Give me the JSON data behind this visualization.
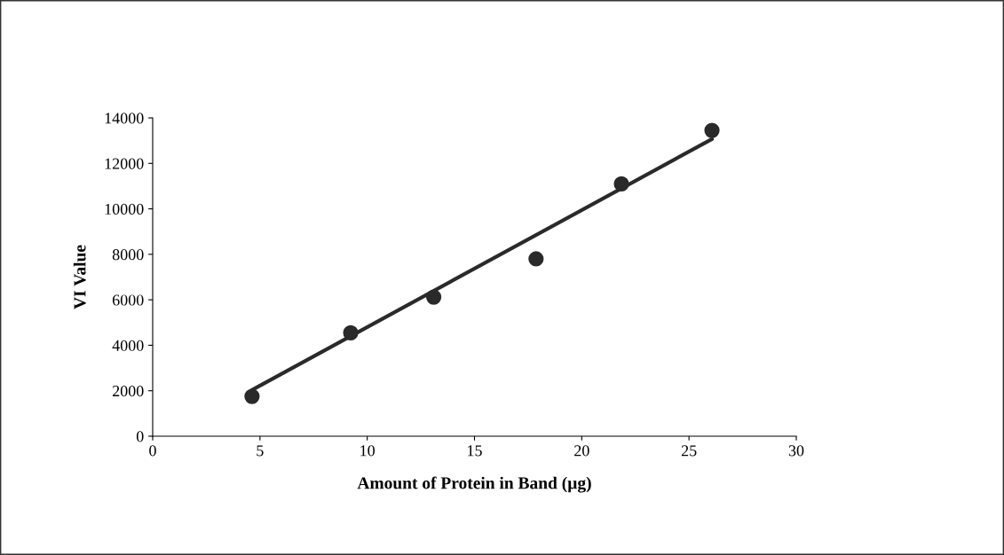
{
  "chart_data": {
    "type": "scatter",
    "xlabel": "Amount of Protein in Band (µg)",
    "ylabel": "VI Value",
    "series": [
      {
        "color": "#2a2a2a",
        "marker": "circle",
        "x": [
          4.63,
          9.23,
          13.1,
          17.87,
          21.85,
          26.07
        ],
        "values": [
          1750,
          4550,
          6120,
          7800,
          11100,
          13450
        ]
      },
      {
        "type": "line",
        "color": "#2a2a2a",
        "marker": "none",
        "x": [
          4.63,
          26.07
        ],
        "values": [
          2030,
          13070
        ]
      }
    ],
    "xlim": [
      0,
      30
    ],
    "xticks": [
      0,
      5,
      10,
      15,
      20,
      25,
      30
    ],
    "ylim": [
      0,
      14000
    ],
    "yticks": [
      0,
      2000,
      4000,
      6000,
      8000,
      10000,
      12000,
      14000
    ],
    "grid": false,
    "legend": false
  }
}
